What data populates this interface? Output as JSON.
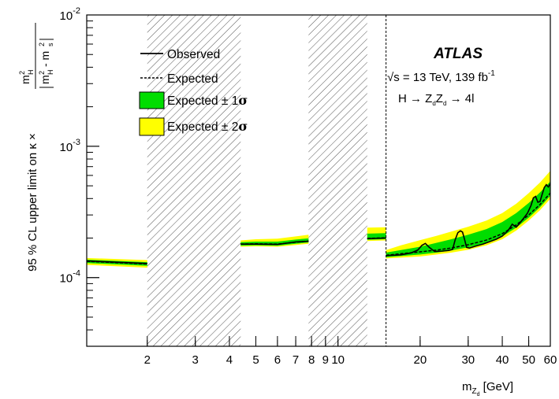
{
  "chart_data": {
    "type": "line",
    "experiment": "ATLAS",
    "energy_label": "√s = 13 TeV, 139 fb",
    "lumi_exponent": "-1",
    "process_label": "H → Z",
    "process_tail": " → 4l",
    "xlabel_main": "m",
    "xlabel_unit": " [GeV]",
    "ylabel_main": "95 % CL upper limit on κ ×",
    "xscale": "log",
    "yscale": "log",
    "xlim": [
      1.2,
      60
    ],
    "ylim": [
      3e-05,
      0.01
    ],
    "x_ticks": [
      2,
      3,
      4,
      5,
      6,
      7,
      8,
      9,
      10,
      20,
      30,
      40,
      50,
      60
    ],
    "y_ticks": [
      "10^-4",
      "10^-3",
      "10^-2"
    ],
    "excluded_regions": [
      [
        2.0,
        4.4
      ],
      [
        7.8,
        12.8
      ]
    ],
    "reference_line_x": 15,
    "legend": {
      "position": "top-left",
      "entries": [
        "Observed",
        "Expected",
        "Expected ± 1",
        "Expected ± 2"
      ],
      "sigma_symbol": "σ"
    },
    "colors": {
      "band_1sigma": "#00dd00",
      "band_2sigma": "#ffff00",
      "line": "#000000"
    },
    "segments": [
      {
        "x": [
          1.2,
          2.0
        ],
        "expected": [
          0.000133,
          0.000127
        ],
        "observed": [
          0.000134,
          0.000128
        ],
        "s1_lo": [
          0.000129,
          0.000123
        ],
        "s1_hi": [
          0.000137,
          0.000131
        ],
        "s2_lo": [
          0.000125,
          0.000119
        ],
        "s2_hi": [
          0.000141,
          0.000136
        ]
      },
      {
        "x": [
          4.4,
          5.0,
          6.0,
          7.0,
          7.8
        ],
        "expected": [
          0.00018,
          0.000181,
          0.00018,
          0.000186,
          0.00019
        ],
        "observed": [
          0.00018,
          0.00018,
          0.000179,
          0.000187,
          0.000189
        ],
        "s1_lo": [
          0.000175,
          0.000176,
          0.000175,
          0.000181,
          0.000185
        ],
        "s1_hi": [
          0.000186,
          0.000188,
          0.000188,
          0.000195,
          0.000199
        ],
        "s2_lo": [
          0.000172,
          0.000173,
          0.000172,
          0.000177,
          0.000181
        ],
        "s2_hi": [
          0.000192,
          0.000196,
          0.000198,
          0.000206,
          0.000212
        ]
      },
      {
        "x": [
          12.8,
          15.0
        ],
        "expected": [
          0.000199,
          0.000201
        ],
        "observed": [
          0.000198,
          0.0002
        ],
        "s1_lo": [
          0.000194,
          0.000196
        ],
        "s1_hi": [
          0.000216,
          0.000218
        ],
        "s2_lo": [
          0.00019,
          0.000192
        ],
        "s2_hi": [
          0.00024,
          0.000242
        ]
      },
      {
        "x": [
          15,
          17,
          20,
          23,
          26,
          30,
          35,
          40,
          45,
          50,
          55,
          60
        ],
        "expected": [
          0.000148,
          0.000152,
          0.000157,
          0.000162,
          0.000168,
          0.000178,
          0.000193,
          0.000216,
          0.000252,
          0.0003,
          0.00036,
          0.00044
        ],
        "s1_lo": [
          0.000143,
          0.000146,
          0.00015,
          0.000155,
          0.000161,
          0.00017,
          0.000184,
          0.000206,
          0.00024,
          0.000286,
          0.000343,
          0.00042
        ],
        "s1_hi": [
          0.000155,
          0.000162,
          0.000172,
          0.000184,
          0.000196,
          0.000212,
          0.000234,
          0.000265,
          0.00031,
          0.00037,
          0.000445,
          0.00054
        ],
        "s2_lo": [
          0.00014,
          0.000142,
          0.000145,
          0.00015,
          0.000155,
          0.000163,
          0.000176,
          0.000196,
          0.000228,
          0.000272,
          0.000326,
          0.000398
        ],
        "s2_hi": [
          0.000162,
          0.000176,
          0.000193,
          0.000208,
          0.000224,
          0.000244,
          0.000272,
          0.00031,
          0.000365,
          0.00044,
          0.00053,
          0.00065
        ],
        "observed_x": [
          15,
          17,
          18.5,
          19.6,
          20.3,
          20.9,
          21.6,
          22.6,
          24,
          25.5,
          26.3,
          26.9,
          27.5,
          28.1,
          28.6,
          29.1,
          29.6,
          30.3,
          32,
          34,
          36,
          38,
          40,
          42,
          43.5,
          45,
          46.5,
          48,
          49.5,
          51,
          52,
          53,
          54,
          55,
          56,
          57,
          58,
          59,
          60
        ],
        "observed": [
          0.000147,
          0.000149,
          0.000154,
          0.000162,
          0.000176,
          0.000182,
          0.00017,
          0.000158,
          0.000159,
          0.000161,
          0.000164,
          0.000195,
          0.00022,
          0.000227,
          0.000222,
          0.000195,
          0.00017,
          0.000168,
          0.000174,
          0.00018,
          0.000188,
          0.000196,
          0.000207,
          0.000228,
          0.000255,
          0.000242,
          0.000262,
          0.000285,
          0.00031,
          0.000355,
          0.000405,
          0.000415,
          0.000375,
          0.00038,
          0.00043,
          0.000485,
          0.00051,
          0.00049,
          0.00052
        ]
      }
    ]
  }
}
